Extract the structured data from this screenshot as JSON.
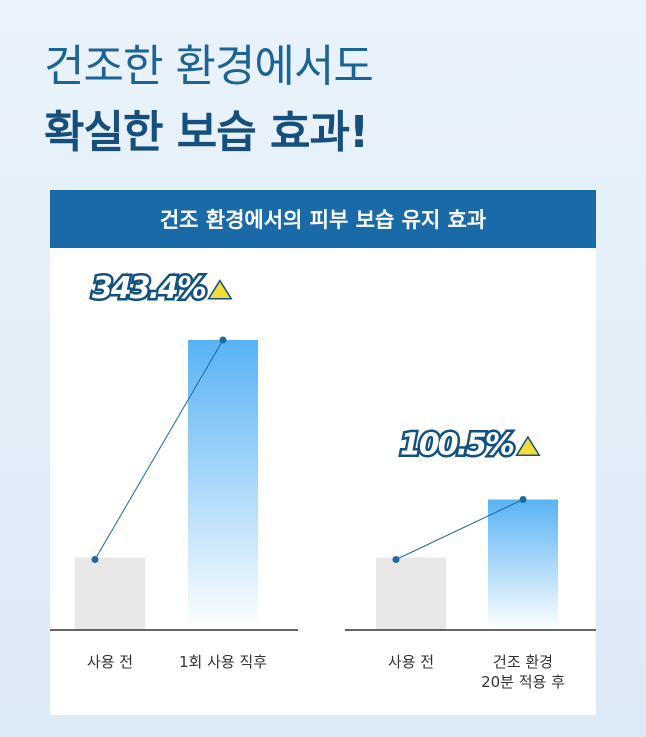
{
  "headline": [
    "건조한 환경에서도",
    "확실한 보습 효과!"
  ],
  "panel_title": "건조 환경에서의 피부 보습 유지 효과",
  "chart_data": [
    {
      "type": "bar",
      "categories": [
        "사용 전",
        "1회 사용 직후"
      ],
      "values": [
        25,
        100
      ],
      "annotation": "343.4%"
    },
    {
      "type": "bar",
      "categories": [
        "사용 전",
        "건조 환경\n20분 적용 후"
      ],
      "values": [
        25,
        45
      ],
      "annotation": "100.5%"
    }
  ]
}
